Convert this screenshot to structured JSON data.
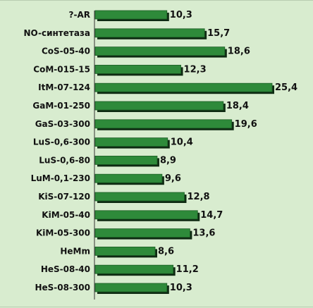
{
  "chart_data": {
    "type": "bar",
    "orientation": "horizontal",
    "title": "",
    "xlabel": "",
    "ylabel": "",
    "categories": [
      "?-AR",
      "NO-синтетаза",
      "CoS-05-40",
      "CoM-015-15",
      "ItM-07-124",
      "GaM-01-250",
      "GaS-03-300",
      "LuS-0,6-300",
      "LuS-0,6-80",
      "LuM-0,1-230",
      "KiS-07-120",
      "KiM-05-40",
      "KiM-05-300",
      "HeMm",
      "HeS-08-40",
      "HeS-08-300"
    ],
    "values": [
      10.3,
      15.7,
      18.6,
      12.3,
      25.4,
      18.4,
      19.6,
      10.4,
      8.9,
      9.6,
      12.8,
      14.7,
      13.6,
      8.6,
      11.2,
      10.3
    ],
    "value_labels": [
      "10,3",
      "15,7",
      "18,6",
      "12,3",
      "25,4",
      "18,4",
      "19,6",
      "10,4",
      "8,9",
      "9,6",
      "12,8",
      "14,7",
      "13,6",
      "8,6",
      "11,2",
      "10,3"
    ],
    "xlim": [
      0,
      25.4
    ],
    "grid": false,
    "legend": "none",
    "colors": {
      "background": "#d8eccf",
      "bar": "#2e8a3a",
      "bar_shadow": "#0e2a12",
      "axis": "#333333",
      "text": "#111111"
    }
  }
}
